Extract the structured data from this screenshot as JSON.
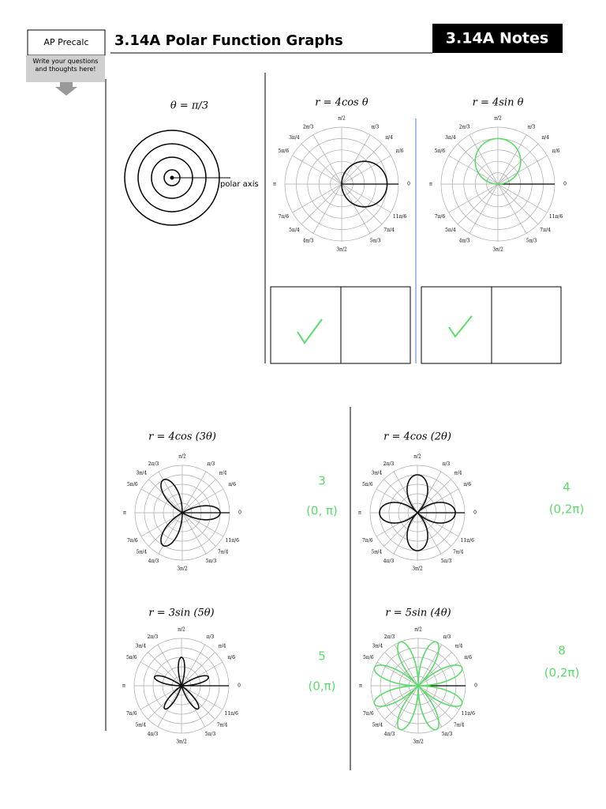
{
  "header": {
    "course": "AP Precalc",
    "note_prompt": "Write your questions and thoughts here!",
    "title": "3.14A Polar Function Graphs",
    "badge": "3.14A Notes"
  },
  "intro": {
    "equation": "θ = π/3",
    "axis_label": "polar axis"
  },
  "angle_labels": [
    "0",
    "π/6",
    "π/4",
    "π/3",
    "π/2",
    "2π/3",
    "3π/4",
    "5π/6",
    "π",
    "7π/6",
    "5π/4",
    "4π/3",
    "3π/2",
    "5π/3",
    "7π/4",
    "11π/6"
  ],
  "graphs": [
    {
      "equation": "r = 4cos θ"
    },
    {
      "equation": "r = 4sin θ"
    },
    {
      "equation": "r = 4cos (3θ)"
    },
    {
      "equation": "r = 4cos (2θ)"
    },
    {
      "equation": "r = 3sin (5θ)"
    },
    {
      "equation": "r = 5sin (4θ)"
    }
  ],
  "answers": [
    {
      "petals": "3",
      "interval": "(0, π)"
    },
    {
      "petals": "4",
      "interval": "(0,2π)"
    },
    {
      "petals": "5",
      "interval": "(0,π)"
    },
    {
      "petals": "8",
      "interval": "(0,2π)"
    }
  ]
}
